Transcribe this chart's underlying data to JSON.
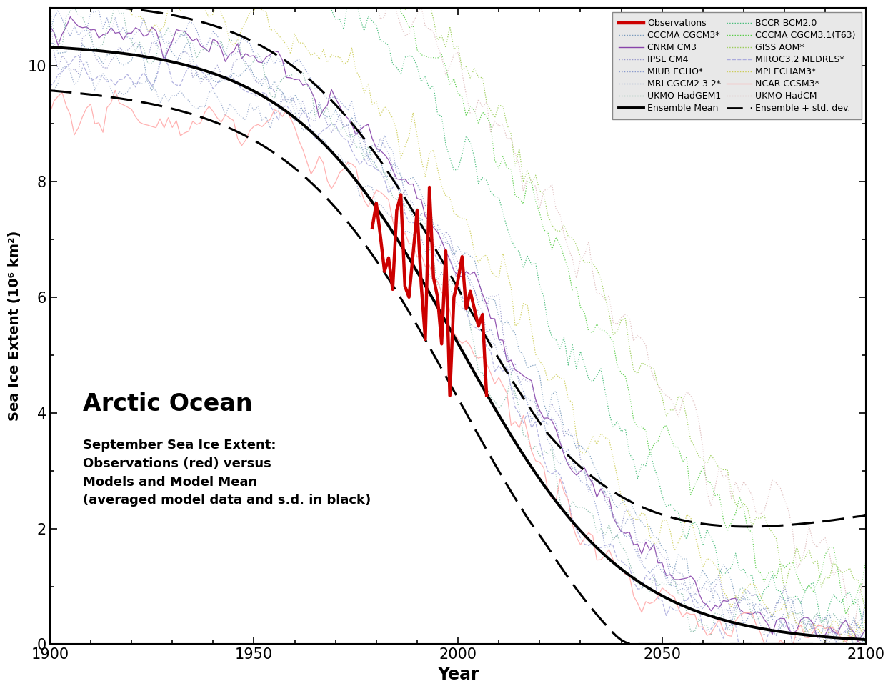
{
  "xlabel": "Year",
  "ylabel": "Sea Ice Extent (10⁶ km²)",
  "xlim": [
    1900,
    2100
  ],
  "ylim": [
    0,
    11
  ],
  "yticks": [
    0,
    2,
    4,
    6,
    8,
    10
  ],
  "xticks": [
    1900,
    1950,
    2000,
    2050,
    2100
  ],
  "annotation_title": "Arctic Ocean",
  "annotation_body": "September Sea Ice Extent:\nObservations (red) versus\nModels and Model Mean\n(averaged model data and s.d. in black)",
  "background_color": "#ffffff"
}
